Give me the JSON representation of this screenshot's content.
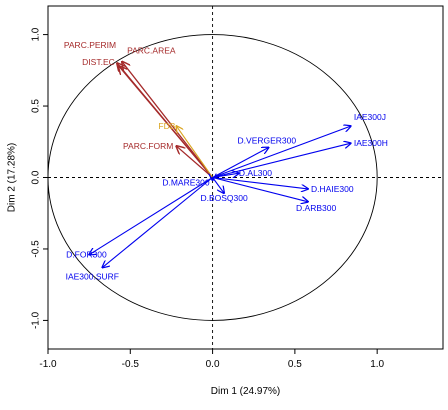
{
  "chart_data": {
    "type": "scatter",
    "subtype": "pca-correlation-circle",
    "title": "",
    "xlabel": "Dim 1 (24.97%)",
    "ylabel": "Dim 2 (17.28%)",
    "xlim": [
      -1.0,
      1.4
    ],
    "ylim": [
      -1.2,
      1.2
    ],
    "xticks": [
      -1.0,
      -0.5,
      0.0,
      0.5,
      1.0
    ],
    "xtick_labels": [
      "-1.0",
      "-0.5",
      "0.0",
      "0.5",
      "1.0"
    ],
    "yticks": [
      -1.0,
      -0.5,
      0.0,
      0.5,
      1.0
    ],
    "ytick_labels": [
      "-1.0",
      "-0.5",
      "0.0",
      "0.5",
      "1.0"
    ],
    "unit_circle": true,
    "reference_lines": "dashed at x=0 and y=0",
    "series": [
      {
        "group": "parcel",
        "color": "#a52a2a",
        "vectors": [
          {
            "name": "PARC.PERIM",
            "x": -0.58,
            "y": 0.8
          },
          {
            "name": "PARC.AREA",
            "x": -0.55,
            "y": 0.81
          },
          {
            "name": "DIST.EC",
            "x": -0.57,
            "y": 0.78
          },
          {
            "name": "PARC.FORM",
            "x": -0.22,
            "y": 0.22
          }
        ]
      },
      {
        "group": "supplementary",
        "color": "#daa520",
        "vectors": [
          {
            "name": "FDB",
            "x": -0.22,
            "y": 0.36
          }
        ]
      },
      {
        "group": "landscape",
        "color": "#0000ee",
        "vectors": [
          {
            "name": "IAE300J",
            "x": 0.84,
            "y": 0.36
          },
          {
            "name": "IAE300H",
            "x": 0.84,
            "y": 0.24
          },
          {
            "name": "D.VERGER300",
            "x": 0.34,
            "y": 0.21
          },
          {
            "name": "D.AL300",
            "x": 0.16,
            "y": 0.03
          },
          {
            "name": "D.HAIE300",
            "x": 0.58,
            "y": -0.08
          },
          {
            "name": "D.ARB300",
            "x": 0.58,
            "y": -0.17
          },
          {
            "name": "D.BOSQ300",
            "x": 0.07,
            "y": -0.11
          },
          {
            "name": "D.MARE300",
            "x": 0.0,
            "y": -0.02
          },
          {
            "name": "D.FOR300",
            "x": -0.75,
            "y": -0.54
          },
          {
            "name": "IAE300.SURF",
            "x": -0.67,
            "y": -0.63
          }
        ]
      }
    ]
  }
}
